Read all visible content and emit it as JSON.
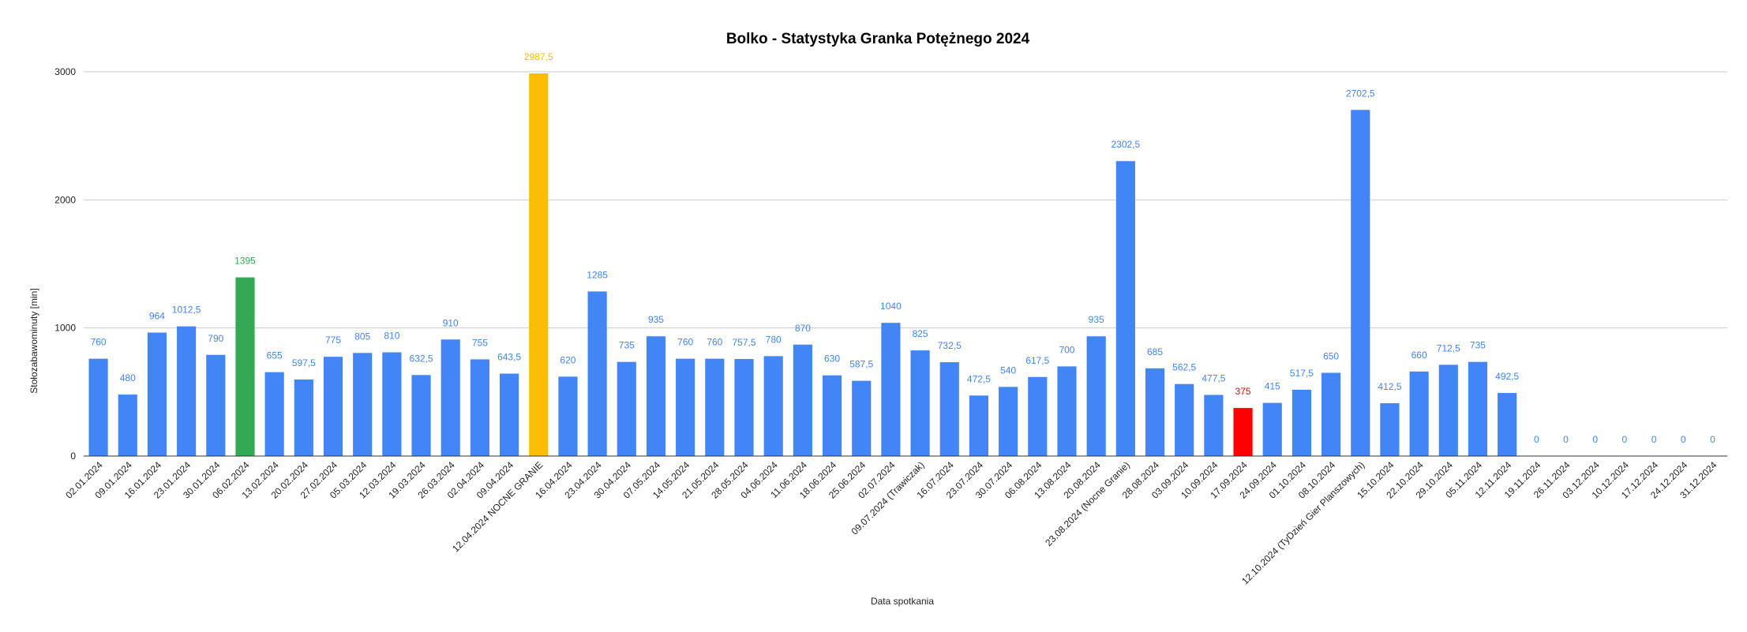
{
  "chart_data": {
    "type": "bar",
    "title": "Bolko - Statystyka Granka Potężnego 2024",
    "xlabel": "Data spotkania",
    "ylabel": "Stołozabawominuty [min]",
    "ylim": [
      0,
      3000
    ],
    "yticks": [
      "0",
      "1000",
      "2000",
      "3000"
    ],
    "grid": true,
    "categories": [
      "02.01.2024",
      "09.01.2024",
      "16.01.2024",
      "23.01.2024",
      "30.01.2024",
      "06.02.2024",
      "13.02.2024",
      "20.02.2024",
      "27.02.2024",
      "05.03.2024",
      "12.03.2024",
      "19.03.2024",
      "26.03.2024",
      "02.04.2024",
      "09.04.2024",
      "12.04.2024 NOCNE GRANIE",
      "16.04.2024",
      "23.04.2024",
      "30.04.2024",
      "07.05.2024",
      "14.05.2024",
      "21.05.2024",
      "28.05.2024",
      "04.06.2024",
      "11.06.2024",
      "18.06.2024",
      "25.06.2024",
      "02.07.2024",
      "09.07.2024 (Trawiczak)",
      "16.07.2024",
      "23.07.2024",
      "30.07.2024",
      "06.08.2024",
      "13.08.2024",
      "20.08.2024",
      "23.08.2024 (Nocne Granie)",
      "28.08.2024",
      "03.09.2024",
      "10.09.2024",
      "17.09.2024",
      "24.09.2024",
      "01.10.2024",
      "08.10.2024",
      "12.10.2024 (TyDzień Gier Planszowych)",
      "15.10.2024",
      "22.10.2024",
      "29.10.2024",
      "05.11.2024",
      "12.11.2024",
      "19.11.2024",
      "26.11.2024",
      "03.12.2024",
      "10.12.2024",
      "17.12.2024",
      "24.12.2024",
      "31.12.2024"
    ],
    "values": [
      760,
      480,
      964,
      1012.5,
      790,
      1395,
      655,
      597.5,
      775,
      805,
      810,
      632.5,
      910,
      755,
      643.5,
      2987.5,
      620,
      1285,
      735,
      935,
      760,
      760,
      757.5,
      780,
      870,
      630,
      587.5,
      1040,
      825,
      732.5,
      472.5,
      540,
      617.5,
      700,
      935,
      2302.5,
      685,
      562.5,
      477.5,
      375,
      415,
      517.5,
      650,
      2702.5,
      412.5,
      660,
      712.5,
      735,
      492.5,
      0,
      0,
      0,
      0,
      0,
      0,
      0
    ],
    "value_labels": [
      "760",
      "480",
      "964",
      "1012,5",
      "790",
      "1395",
      "655",
      "597,5",
      "775",
      "805",
      "810",
      "632,5",
      "910",
      "755",
      "643,5",
      "2987,5",
      "620",
      "1285",
      "735",
      "935",
      "760",
      "760",
      "757,5",
      "780",
      "870",
      "630",
      "587,5",
      "1040",
      "825",
      "732,5",
      "472,5",
      "540",
      "617,5",
      "700",
      "935",
      "2302,5",
      "685",
      "562,5",
      "477,5",
      "375",
      "415",
      "517,5",
      "650",
      "2702,5",
      "412,5",
      "660",
      "712,5",
      "735",
      "492,5",
      "0",
      "0",
      "0",
      "0",
      "0",
      "0",
      "0"
    ],
    "colors": {
      "default": "#4285f4",
      "max": "#fbbc04",
      "min": "#ff0000",
      "highlight": "#34a853",
      "label_default": "#4285f4",
      "label_max": "#fbbc04",
      "label_min": "#ff0000",
      "label_highlight": "#34a853"
    },
    "special_bars": {
      "5": "highlight",
      "15": "max",
      "39": "min"
    }
  }
}
